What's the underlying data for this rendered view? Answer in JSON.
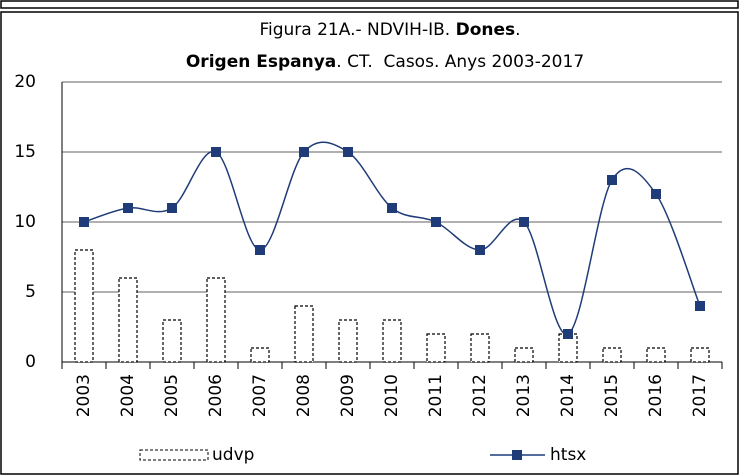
{
  "chart_data": {
    "type": "bar_line",
    "title": {
      "line1": [
        "Figura 21A.- NDVIH-IB.",
        "Dones",
        "."
      ],
      "line2": [
        "Origen Espanya",
        ". CT.  Casos. Anys 2003-2017"
      ]
    },
    "categories": [
      "2003",
      "2004",
      "2005",
      "2006",
      "2007",
      "2008",
      "2009",
      "2010",
      "2011",
      "2012",
      "2013",
      "2014",
      "2015",
      "2016",
      "2017"
    ],
    "series": [
      {
        "name": "udvp",
        "type": "bar",
        "color": "#000000",
        "values": [
          8,
          6,
          3,
          6,
          1,
          4,
          3,
          3,
          2,
          2,
          1,
          2,
          1,
          1,
          1
        ]
      },
      {
        "name": "htsx",
        "type": "line",
        "color": "#1f3c78",
        "values": [
          10,
          11,
          11,
          15,
          8,
          15,
          15,
          11,
          10,
          8,
          10,
          2,
          13,
          12,
          4
        ]
      }
    ],
    "ylim": [
      0,
      20
    ],
    "yticks": [
      0,
      5,
      10,
      15,
      20
    ],
    "grid": true,
    "legend": "bottom"
  }
}
